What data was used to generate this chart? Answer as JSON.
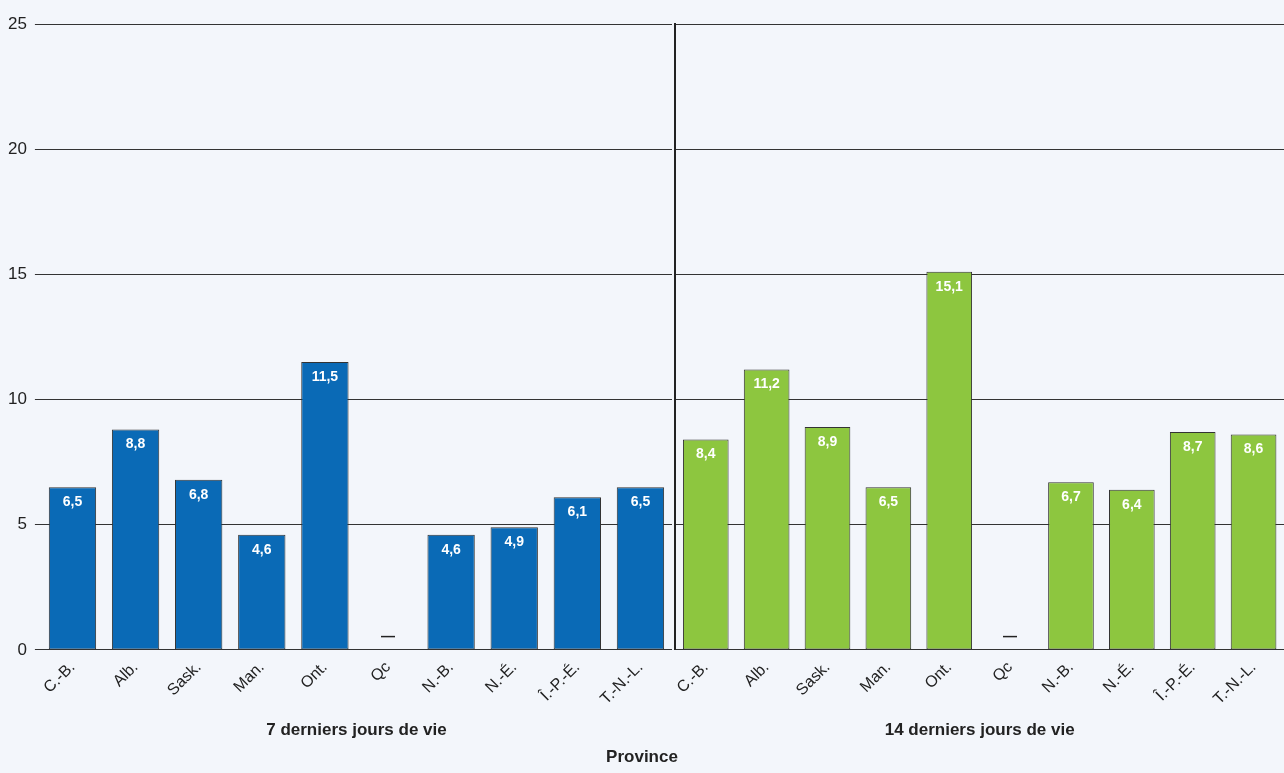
{
  "chart_data": [
    {
      "type": "bar",
      "xlabel": "7 derniers jours de vie",
      "categories": [
        "C.-B.",
        "Alb.",
        "Sask.",
        "Man.",
        "Ont.",
        "Qc",
        "N.-B.",
        "N.-É.",
        "Î.-P.-É.",
        "T.-N.-L."
      ],
      "values": [
        6.5,
        8.8,
        6.8,
        4.6,
        11.5,
        null,
        4.6,
        4.9,
        6.1,
        6.5
      ],
      "value_labels": [
        "6,5",
        "8,8",
        "6,8",
        "4,6",
        "11,5",
        "—",
        "4,6",
        "4,9",
        "6,1",
        "6,5"
      ],
      "color": "#0a6ab6",
      "ylim": [
        0,
        25
      ],
      "yticks": [
        0,
        5,
        10,
        15,
        20,
        25
      ],
      "grid": "y",
      "legend": false,
      "annotations": [
        "Province"
      ]
    },
    {
      "type": "bar",
      "xlabel": "14 derniers jours de vie",
      "categories": [
        "C.-B.",
        "Alb.",
        "Sask.",
        "Man.",
        "Ont.",
        "Qc",
        "N.-B.",
        "N.-É.",
        "Î.-P.-É.",
        "T.-N.-L."
      ],
      "values": [
        8.4,
        11.2,
        8.9,
        6.5,
        15.1,
        null,
        6.7,
        6.4,
        8.7,
        8.6
      ],
      "value_labels": [
        "8,4",
        "11,2",
        "8,9",
        "6,5",
        "15,1",
        "—",
        "6,7",
        "6,4",
        "8,7",
        "8,6"
      ],
      "color": "#8dc63f",
      "ylim": [
        0,
        25
      ],
      "yticks": [
        0,
        5,
        10,
        15,
        20,
        25
      ],
      "grid": "y",
      "legend": false,
      "tick_labels": "x"
    }
  ]
}
